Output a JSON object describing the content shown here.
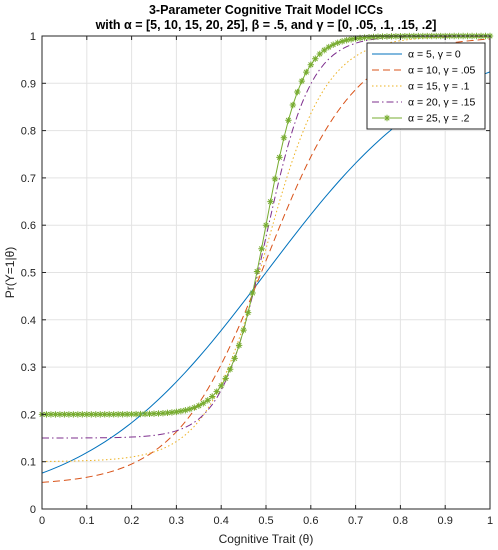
{
  "chart_data": {
    "type": "line",
    "title_lines": [
      "3-Parameter Cognitive Trait Model ICCs",
      "with α = [5, 10, 15, 20, 25], β = .5, and γ = [0, .05, .1, .15, .2]"
    ],
    "xlabel": "Cognitive Trait (θ)",
    "ylabel": "Pr(Y=1|θ)",
    "xlim": [
      0,
      1
    ],
    "ylim": [
      0,
      1
    ],
    "xticks": [
      0,
      0.1,
      0.2,
      0.3,
      0.4,
      0.5,
      0.6,
      0.7,
      0.8,
      0.9,
      1
    ],
    "yticks": [
      0,
      0.1,
      0.2,
      0.3,
      0.4,
      0.5,
      0.6,
      0.7,
      0.8,
      0.9,
      1
    ],
    "grid": true,
    "legend_position": "top-right",
    "model": {
      "beta": 0.5,
      "x_points": 101
    },
    "series": [
      {
        "name": "α = 5, γ = 0",
        "alpha": 5,
        "gamma": 0,
        "color": "#0072BD",
        "style": "solid",
        "marker": "none"
      },
      {
        "name": "α = 10, γ = .05",
        "alpha": 10,
        "gamma": 0.05,
        "color": "#D95319",
        "style": "dashed",
        "marker": "none"
      },
      {
        "name": "α = 15, γ = .1",
        "alpha": 15,
        "gamma": 0.1,
        "color": "#EDB120",
        "style": "dotted",
        "marker": "none"
      },
      {
        "name": "α = 20, γ = .15",
        "alpha": 20,
        "gamma": 0.15,
        "color": "#7E2F8E",
        "style": "dashdot",
        "marker": "none"
      },
      {
        "name": "α = 25, γ = .2",
        "alpha": 25,
        "gamma": 0.2,
        "color": "#77AC30",
        "style": "solid",
        "marker": "star"
      }
    ]
  }
}
